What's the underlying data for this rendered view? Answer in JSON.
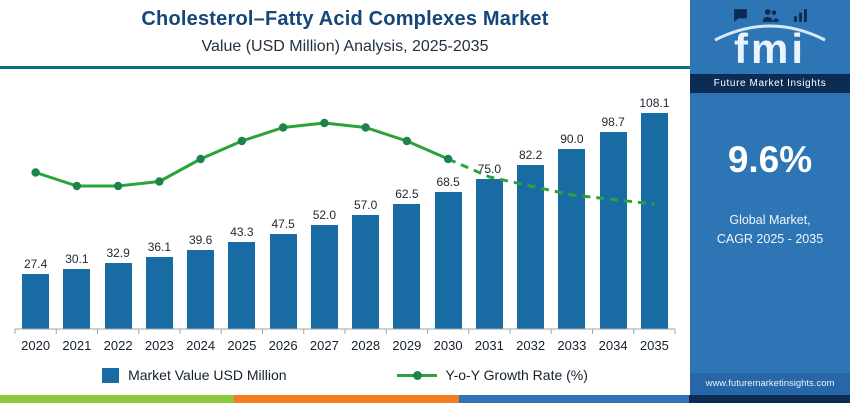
{
  "header": {
    "title": "Cholesterol–Fatty Acid Complexes Market",
    "subtitle": "Value (USD Million) Analysis, 2025-2035"
  },
  "chart_data": {
    "type": "bar",
    "title": "Cholesterol–Fatty Acid Complexes Market Value (USD Million) Analysis, 2025-2035",
    "categories": [
      "2020",
      "2021",
      "2022",
      "2023",
      "2024",
      "2025",
      "2026",
      "2027",
      "2028",
      "2029",
      "2030",
      "2031",
      "2032",
      "2033",
      "2034",
      "2035"
    ],
    "series": [
      {
        "name": "Market Value USD Million",
        "type": "bar",
        "values": [
          27.4,
          30.1,
          32.9,
          36.1,
          39.6,
          43.3,
          47.5,
          52.0,
          57.0,
          62.5,
          68.5,
          75.0,
          82.2,
          90.0,
          98.7,
          108.1
        ]
      },
      {
        "name": "Y-o-Y Growth Rate (%)",
        "type": "line",
        "values": [
          9.1,
          8.8,
          8.8,
          8.9,
          9.4,
          9.8,
          10.1,
          10.2,
          10.1,
          9.8,
          9.4,
          9.0,
          8.8,
          8.6,
          8.5,
          8.4
        ],
        "note": "growth-rate line has no printed value labels; values estimated from curve shape",
        "dashed_from_index": 10,
        "y_min": 8.4,
        "y_max": 10.2
      }
    ],
    "value_labels_shown": true,
    "xlabel": "",
    "ylabel": "",
    "ylim": [
      0,
      120
    ],
    "grid": false,
    "legend_position": "bottom"
  },
  "legend": {
    "bar_label": "Market Value USD Million",
    "line_label": "Y-o-Y Growth Rate (%)"
  },
  "sidebar": {
    "icons": [
      "chat-icon",
      "people-icon",
      "bar-chart-icon"
    ],
    "logo_text": "fmi",
    "brand": "Future Market Insights",
    "cagr_value": "9.6%",
    "cagr_caption_line1": "Global Market,",
    "cagr_caption_line2": "CAGR 2025 - 2035",
    "website": "www.futuremarketinsights.com"
  },
  "colors": {
    "bar": "#186ba3",
    "line": "#2aa43a",
    "marker": "#1e824c",
    "panel": "#2e75b6",
    "navy": "#0d2c54",
    "rule": "#156a84",
    "title": "#14467b",
    "subtitle": "#22303f",
    "website_band": "#2767a9",
    "axis": "#9aa5ad",
    "stripe": [
      "#8dc63f",
      "#f47b20",
      "#2e75b6",
      "#0d2c54"
    ]
  },
  "footer": {
    "stripe_widths_pct": [
      27.5,
      26.5,
      27,
      19
    ]
  }
}
